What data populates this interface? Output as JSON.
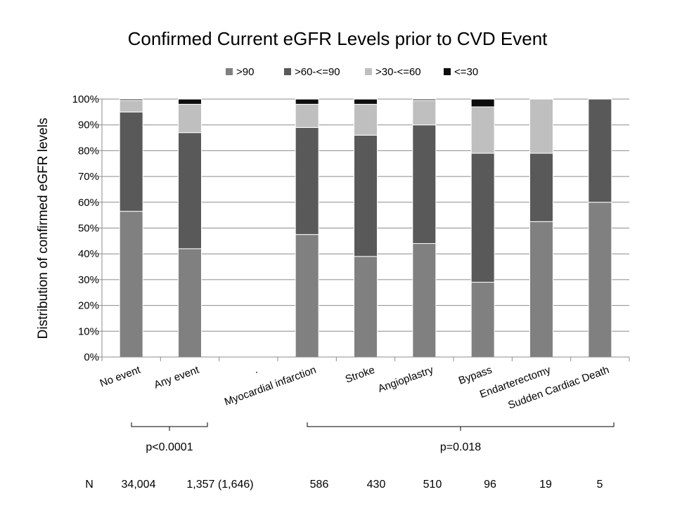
{
  "chart_data": {
    "type": "bar",
    "stacked": true,
    "title": "Confirmed Current eGFR Levels prior to CVD Event",
    "ylabel": "Distribution of confirmed eGFR levels",
    "xlabel": "",
    "ylim": [
      0,
      100
    ],
    "yticks": [
      "0%",
      "10%",
      "20%",
      "30%",
      "40%",
      "50%",
      "60%",
      "70%",
      "80%",
      "90%",
      "100%"
    ],
    "grid": "horizontal",
    "legend_position": "top",
    "categories": [
      "No event",
      "Any event",
      ".",
      "Myocardial infarction",
      "Stroke",
      "Angioplastry",
      "Bypass",
      "Endarterectomy",
      "Sudden Cardiac Death"
    ],
    "series": [
      {
        "name": ">90",
        "color": "#808080",
        "values": [
          56.5,
          42,
          0,
          47.5,
          39,
          44,
          29,
          52.5,
          60
        ]
      },
      {
        "name": ">60-<=90",
        "color": "#595959",
        "values": [
          38.5,
          45,
          0,
          41.5,
          47,
          46,
          50,
          26.5,
          40
        ]
      },
      {
        "name": ">30-<=60",
        "color": "#bfbfbf",
        "values": [
          4.5,
          11,
          0,
          9,
          12,
          9.5,
          18,
          21,
          0
        ]
      },
      {
        "name": "<=30",
        "color": "#0d0d0d",
        "values": [
          0.5,
          2,
          0,
          2,
          2,
          0.5,
          3,
          0,
          0
        ]
      }
    ]
  },
  "comparisons": [
    {
      "label": "p<0.0001"
    },
    {
      "label": "p=0.018"
    }
  ],
  "n_row": {
    "label": "N",
    "values": [
      "34,004",
      "1,357 (1,646)",
      "586",
      "430",
      "510",
      "96",
      "19",
      "5"
    ]
  }
}
